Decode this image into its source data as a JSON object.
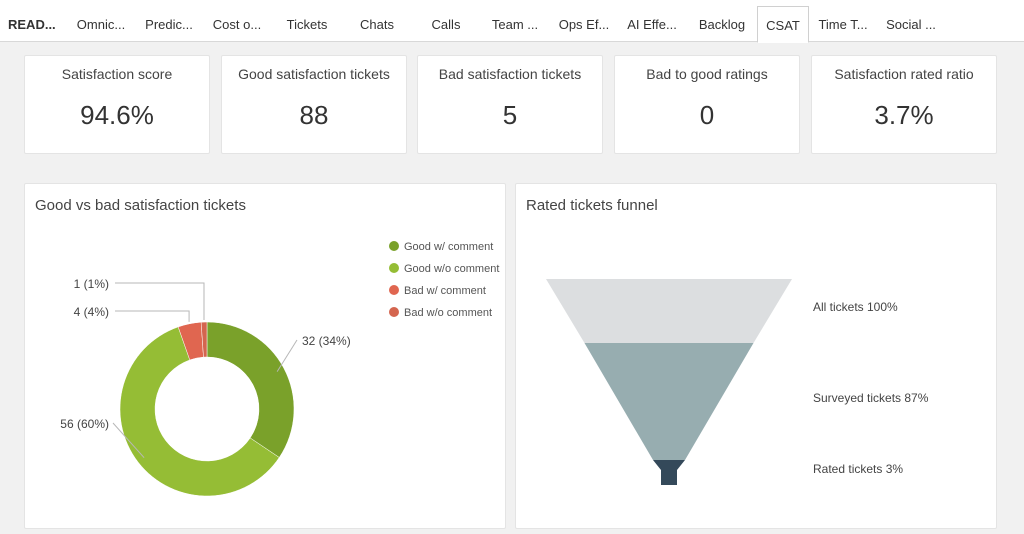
{
  "tabs": [
    {
      "label": "READ...",
      "active": false
    },
    {
      "label": "Omnic...",
      "active": false
    },
    {
      "label": "Predic...",
      "active": false
    },
    {
      "label": "Cost o...",
      "active": false
    },
    {
      "label": "Tickets",
      "active": false
    },
    {
      "label": "Chats",
      "active": false
    },
    {
      "label": "Calls",
      "active": false
    },
    {
      "label": "Team ...",
      "active": false
    },
    {
      "label": "Ops Ef...",
      "active": false
    },
    {
      "label": "AI Effe...",
      "active": false
    },
    {
      "label": "Backlog",
      "active": false
    },
    {
      "label": "CSAT",
      "active": true
    },
    {
      "label": "Time T...",
      "active": false
    },
    {
      "label": "Social ...",
      "active": false
    }
  ],
  "kpis": [
    {
      "title": "Satisfaction score",
      "value": "94.6%"
    },
    {
      "title": "Good satisfaction tickets",
      "value": "88"
    },
    {
      "title": "Bad satisfaction tickets",
      "value": "5"
    },
    {
      "title": "Bad to good ratings",
      "value": "0"
    },
    {
      "title": "Satisfaction rated ratio",
      "value": "3.7%"
    }
  ],
  "donut_panel": {
    "title": "Good vs bad satisfaction tickets"
  },
  "funnel_panel": {
    "title": "Rated tickets funnel"
  },
  "colors": {
    "good_with_comment": "#7aa12a",
    "good_without_comment": "#95bd35",
    "bad_with_comment": "#e06650",
    "bad_without_comment": "#d4654f",
    "funnel_all": "#dcdee0",
    "funnel_surveyed": "#97adb0",
    "funnel_rated": "#34495a"
  },
  "chart_data": [
    {
      "type": "pie",
      "variant": "donut",
      "slices": [
        {
          "label": "Good w/ comment",
          "value": 32,
          "data_label": "32 (34%)"
        },
        {
          "label": "Good w/o comment",
          "value": 56,
          "data_label": "56 (60%)"
        },
        {
          "label": "Bad w/ comment",
          "value": 4,
          "data_label": "4 (4%)"
        },
        {
          "label": "Bad w/o comment",
          "value": 1,
          "data_label": "1 (1%)"
        }
      ],
      "legend": [
        "Good w/ comment",
        "Good w/o comment",
        "Bad w/ comment",
        "Bad w/o comment"
      ],
      "legend_position": "top-right"
    },
    {
      "type": "funnel",
      "stages": [
        {
          "label": "All tickets 100%",
          "value": 100
        },
        {
          "label": "Surveyed tickets 87%",
          "value": 87
        },
        {
          "label": "Rated tickets 3%",
          "value": 3
        }
      ]
    }
  ]
}
